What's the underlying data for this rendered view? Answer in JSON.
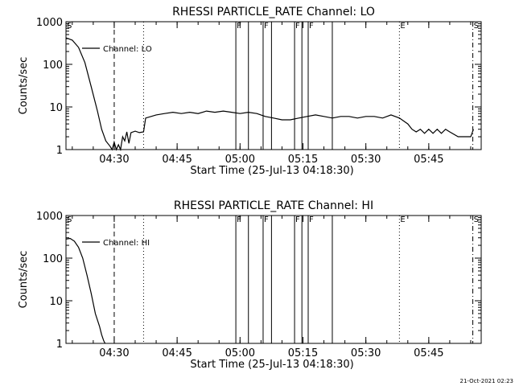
{
  "footer": {
    "timestamp": "21-Oct-2021 02:23"
  },
  "chart_data": [
    {
      "type": "line",
      "title": "RHESSI PARTICLE_RATE Channel: LO",
      "xlabel": "Start Time (25-Jul-13 04:18:30)",
      "ylabel": "Counts/sec",
      "yscale": "log",
      "ylim": [
        1,
        1000
      ],
      "xlim": [
        "04:18:30",
        "05:57:30"
      ],
      "grid": false,
      "legend": {
        "placement": "top-left",
        "entries": [
          "Channel: LO"
        ]
      },
      "xticks": [
        "04:30",
        "04:45",
        "05:00",
        "05:15",
        "05:30",
        "05:45"
      ],
      "yticks": [
        "1",
        "10",
        "100",
        "1000"
      ],
      "markers": [
        {
          "label": "S",
          "time": "04:18:30",
          "style": "solid"
        },
        {
          "label": "",
          "time": "04:30:00",
          "style": "dashed"
        },
        {
          "label": "",
          "time": "04:37:00",
          "style": "dotted"
        },
        {
          "label": "F",
          "time": "04:59:00",
          "style": "solid"
        },
        {
          "label": "",
          "time": "05:02:00",
          "style": "solid"
        },
        {
          "label": "F",
          "time": "05:05:30",
          "style": "solid"
        },
        {
          "label": "",
          "time": "05:07:30",
          "style": "solid"
        },
        {
          "label": "F",
          "time": "05:13:00",
          "style": "solid"
        },
        {
          "label": "",
          "time": "05:14:45",
          "style": "solid"
        },
        {
          "label": "F",
          "time": "05:16:15",
          "style": "solid"
        },
        {
          "label": "",
          "time": "05:22:00",
          "style": "solid"
        },
        {
          "label": "E",
          "time": "05:38:00",
          "style": "dotted"
        },
        {
          "label": "S",
          "time": "05:55:30",
          "style": "dashdot"
        }
      ],
      "series": [
        {
          "name": "Channel: LO",
          "t": [
            "04:18:30",
            "04:20:00",
            "04:21:30",
            "04:23:00",
            "04:24:30",
            "04:26:00",
            "04:27:00",
            "04:28:00",
            "04:29:00",
            "04:29:30",
            "04:30:00",
            "04:30:30",
            "04:31:00",
            "04:31:30",
            "04:32:00",
            "04:32:30",
            "04:33:00",
            "04:33:30",
            "04:34:00",
            "04:35:00",
            "04:36:00",
            "04:37:00",
            "04:37:30",
            "04:40:00",
            "04:42:00",
            "04:44:00",
            "04:46:00",
            "04:48:00",
            "04:50:00",
            "04:52:00",
            "04:54:00",
            "04:56:00",
            "04:58:00",
            "05:00:00",
            "05:02:00",
            "05:04:00",
            "05:06:00",
            "05:08:00",
            "05:10:00",
            "05:12:00",
            "05:14:00",
            "05:16:00",
            "05:18:00",
            "05:20:00",
            "05:22:00",
            "05:24:00",
            "05:26:00",
            "05:28:00",
            "05:30:00",
            "05:32:00",
            "05:34:00",
            "05:36:00",
            "05:38:00",
            "05:40:00",
            "05:41:00",
            "05:42:00",
            "05:43:00",
            "05:44:00",
            "05:45:00",
            "05:46:00",
            "05:47:00",
            "05:48:00",
            "05:49:00",
            "05:50:00",
            "05:52:00",
            "05:54:00",
            "05:55:00",
            "05:55:40"
          ],
          "values": [
            420,
            370,
            250,
            110,
            30,
            8,
            3,
            1.6,
            1.2,
            1,
            1.5,
            1,
            1.3,
            1,
            2,
            1.6,
            2.6,
            1.4,
            2.5,
            2.7,
            2.5,
            2.6,
            5.5,
            6.5,
            7,
            7.5,
            7,
            7.5,
            7,
            8,
            7.5,
            8,
            7.5,
            7,
            7.5,
            7,
            6,
            5.5,
            5,
            5,
            5.5,
            6,
            6.5,
            6,
            5.5,
            6,
            6,
            5.5,
            6,
            6,
            5.5,
            6.5,
            5.5,
            4,
            3,
            2.6,
            3,
            2.4,
            3,
            2.4,
            3,
            2.4,
            3,
            2.6,
            2,
            2,
            2,
            3
          ]
        }
      ]
    },
    {
      "type": "line",
      "title": "RHESSI PARTICLE_RATE Channel: HI",
      "xlabel": "Start Time (25-Jul-13 04:18:30)",
      "ylabel": "Counts/sec",
      "yscale": "log",
      "ylim": [
        1,
        1000
      ],
      "xlim": [
        "04:18:30",
        "05:57:30"
      ],
      "grid": false,
      "legend": {
        "placement": "top-left",
        "entries": [
          "Channel: HI"
        ]
      },
      "xticks": [
        "04:30",
        "04:45",
        "05:00",
        "05:15",
        "05:30",
        "05:45"
      ],
      "yticks": [
        "1",
        "10",
        "100",
        "1000"
      ],
      "markers": [
        {
          "label": "S",
          "time": "04:18:30",
          "style": "solid"
        },
        {
          "label": "",
          "time": "04:30:00",
          "style": "dashed"
        },
        {
          "label": "",
          "time": "04:37:00",
          "style": "dotted"
        },
        {
          "label": "F",
          "time": "04:59:00",
          "style": "solid"
        },
        {
          "label": "",
          "time": "05:02:00",
          "style": "solid"
        },
        {
          "label": "F",
          "time": "05:05:30",
          "style": "solid"
        },
        {
          "label": "",
          "time": "05:07:30",
          "style": "solid"
        },
        {
          "label": "F",
          "time": "05:13:00",
          "style": "solid"
        },
        {
          "label": "",
          "time": "05:14:45",
          "style": "solid"
        },
        {
          "label": "F",
          "time": "05:16:15",
          "style": "solid"
        },
        {
          "label": "",
          "time": "05:22:00",
          "style": "solid"
        },
        {
          "label": "E",
          "time": "05:38:00",
          "style": "dotted"
        },
        {
          "label": "S",
          "time": "05:55:30",
          "style": "dashdot"
        }
      ],
      "series": [
        {
          "name": "Channel: HI",
          "t": [
            "04:18:30",
            "04:19:30",
            "04:20:30",
            "04:21:30",
            "04:22:30",
            "04:23:30",
            "04:24:30",
            "04:25:30",
            "04:26:30",
            "04:27:00",
            "04:27:30",
            "04:27:50"
          ],
          "values": [
            280,
            290,
            250,
            180,
            100,
            40,
            15,
            5,
            2.5,
            1.6,
            1.15,
            1
          ]
        }
      ]
    }
  ]
}
